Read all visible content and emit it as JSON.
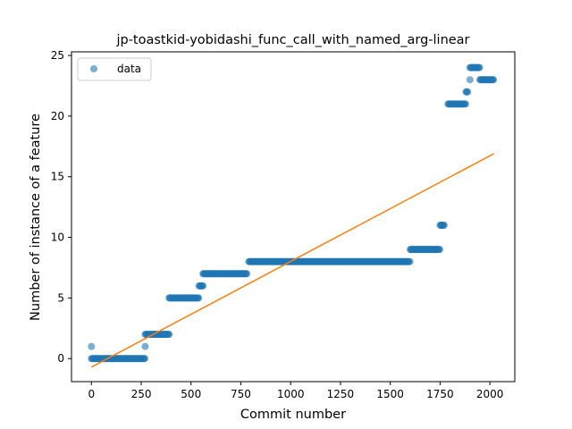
{
  "chart_data": {
    "type": "scatter",
    "title": "jp-toastkid-yobidashi_func_call_with_named_arg-linear",
    "xlabel": "Commit number",
    "ylabel": "Number of instance of a feature",
    "xlim": [
      -100,
      2125
    ],
    "ylim": [
      -1.9,
      25.3
    ],
    "xticks": [
      0,
      250,
      500,
      750,
      1000,
      1250,
      1500,
      1750,
      2000
    ],
    "xtick_labels": [
      "0",
      "250",
      "500",
      "750",
      "1000",
      "1250",
      "1500",
      "1750",
      "2000"
    ],
    "yticks": [
      0,
      5,
      10,
      15,
      20,
      25
    ],
    "ytick_labels": [
      "0",
      "5",
      "10",
      "15",
      "20",
      "25"
    ],
    "grid": false,
    "legend": {
      "entries": [
        "data"
      ],
      "placement": "upper-left"
    },
    "colors": {
      "data": "#1f77b4",
      "fit": "#ff7f0e"
    },
    "series": [
      {
        "name": "data",
        "kind": "scatter",
        "point_groups": [
          {
            "x_start": 0,
            "x_end": 0,
            "y": 1
          },
          {
            "x_start": 0,
            "x_end": 270,
            "y": 0
          },
          {
            "x_start": 270,
            "x_end": 270,
            "y": 1
          },
          {
            "x_start": 270,
            "x_end": 390,
            "y": 2
          },
          {
            "x_start": 390,
            "x_end": 540,
            "y": 5
          },
          {
            "x_start": 540,
            "x_end": 560,
            "y": 6
          },
          {
            "x_start": 560,
            "x_end": 780,
            "y": 7
          },
          {
            "x_start": 790,
            "x_end": 1600,
            "y": 8
          },
          {
            "x_start": 1600,
            "x_end": 1750,
            "y": 9
          },
          {
            "x_start": 1750,
            "x_end": 1770,
            "y": 11
          },
          {
            "x_start": 1790,
            "x_end": 1880,
            "y": 21
          },
          {
            "x_start": 1880,
            "x_end": 1890,
            "y": 22
          },
          {
            "x_start": 1900,
            "x_end": 1900,
            "y": 23
          },
          {
            "x_start": 1900,
            "x_end": 1950,
            "y": 24
          },
          {
            "x_start": 1950,
            "x_end": 2020,
            "y": 23
          }
        ]
      },
      {
        "name": "",
        "kind": "line",
        "x": [
          0,
          2020
        ],
        "y": [
          -0.7,
          16.9
        ]
      }
    ]
  }
}
